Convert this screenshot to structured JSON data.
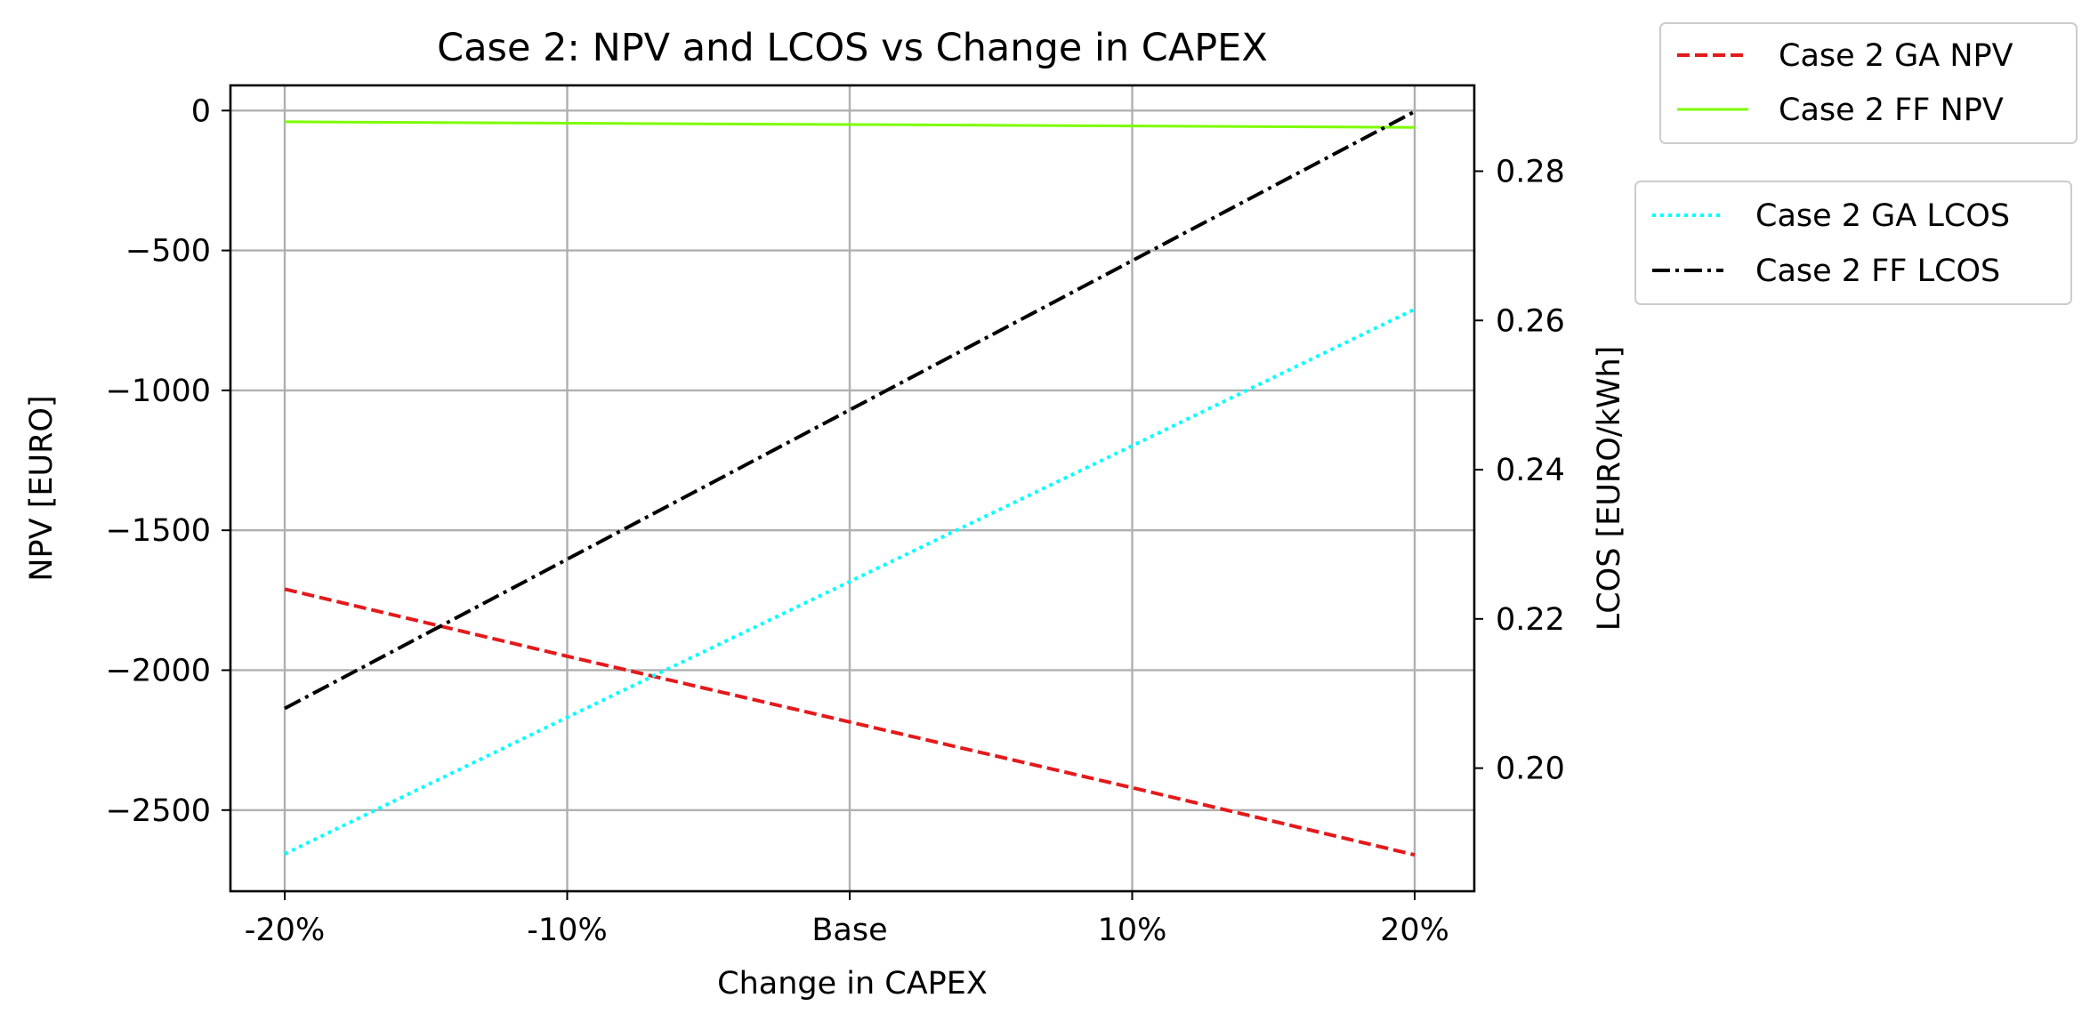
{
  "chart_data": {
    "type": "line",
    "title": "Case 2: NPV and LCOS vs Change in CAPEX",
    "xlabel": "Change in CAPEX",
    "ylabel_left": "NPV [EURO]",
    "ylabel_right": "LCOS [EURO/kWh]",
    "categories": [
      "-20%",
      "-10%",
      "Base",
      "10%",
      "20%"
    ],
    "ylim_left": [
      -2790,
      90
    ],
    "ylim_right": [
      0.1835,
      0.2915
    ],
    "left_ticks": [
      0,
      -500,
      -1000,
      -1500,
      -2000,
      -2500
    ],
    "left_tick_labels": [
      "0",
      "−500",
      "−1000",
      "−1500",
      "−2000",
      "−2500"
    ],
    "right_ticks": [
      0.2,
      0.22,
      0.24,
      0.26,
      0.28
    ],
    "right_tick_labels": [
      "0.20",
      "0.22",
      "0.24",
      "0.26",
      "0.28"
    ],
    "grid": true,
    "legend_npv_position": "outside top-right",
    "legend_lcos_position": "outside right, below NPV legend",
    "series": [
      {
        "name": "Case 2 GA NPV",
        "axis": "left",
        "color": "#e31a1c",
        "style": "dashed",
        "values": [
          -1710,
          -1950,
          -2185,
          -2420,
          -2660
        ]
      },
      {
        "name": "Case 2 FF NPV",
        "axis": "left",
        "color": "#7cfc00",
        "style": "solid",
        "values": [
          -40,
          -45,
          -50,
          -55,
          -60
        ]
      },
      {
        "name": "Case 2 GA LCOS",
        "axis": "right",
        "color": "#00ffff",
        "style": "dotted",
        "values": [
          0.1885,
          0.2068,
          0.225,
          0.2432,
          0.2615
        ]
      },
      {
        "name": "Case 2 FF LCOS",
        "axis": "right",
        "color": "#000000",
        "style": "dashdot",
        "values": [
          0.208,
          0.228,
          0.248,
          0.268,
          0.288
        ]
      }
    ]
  }
}
